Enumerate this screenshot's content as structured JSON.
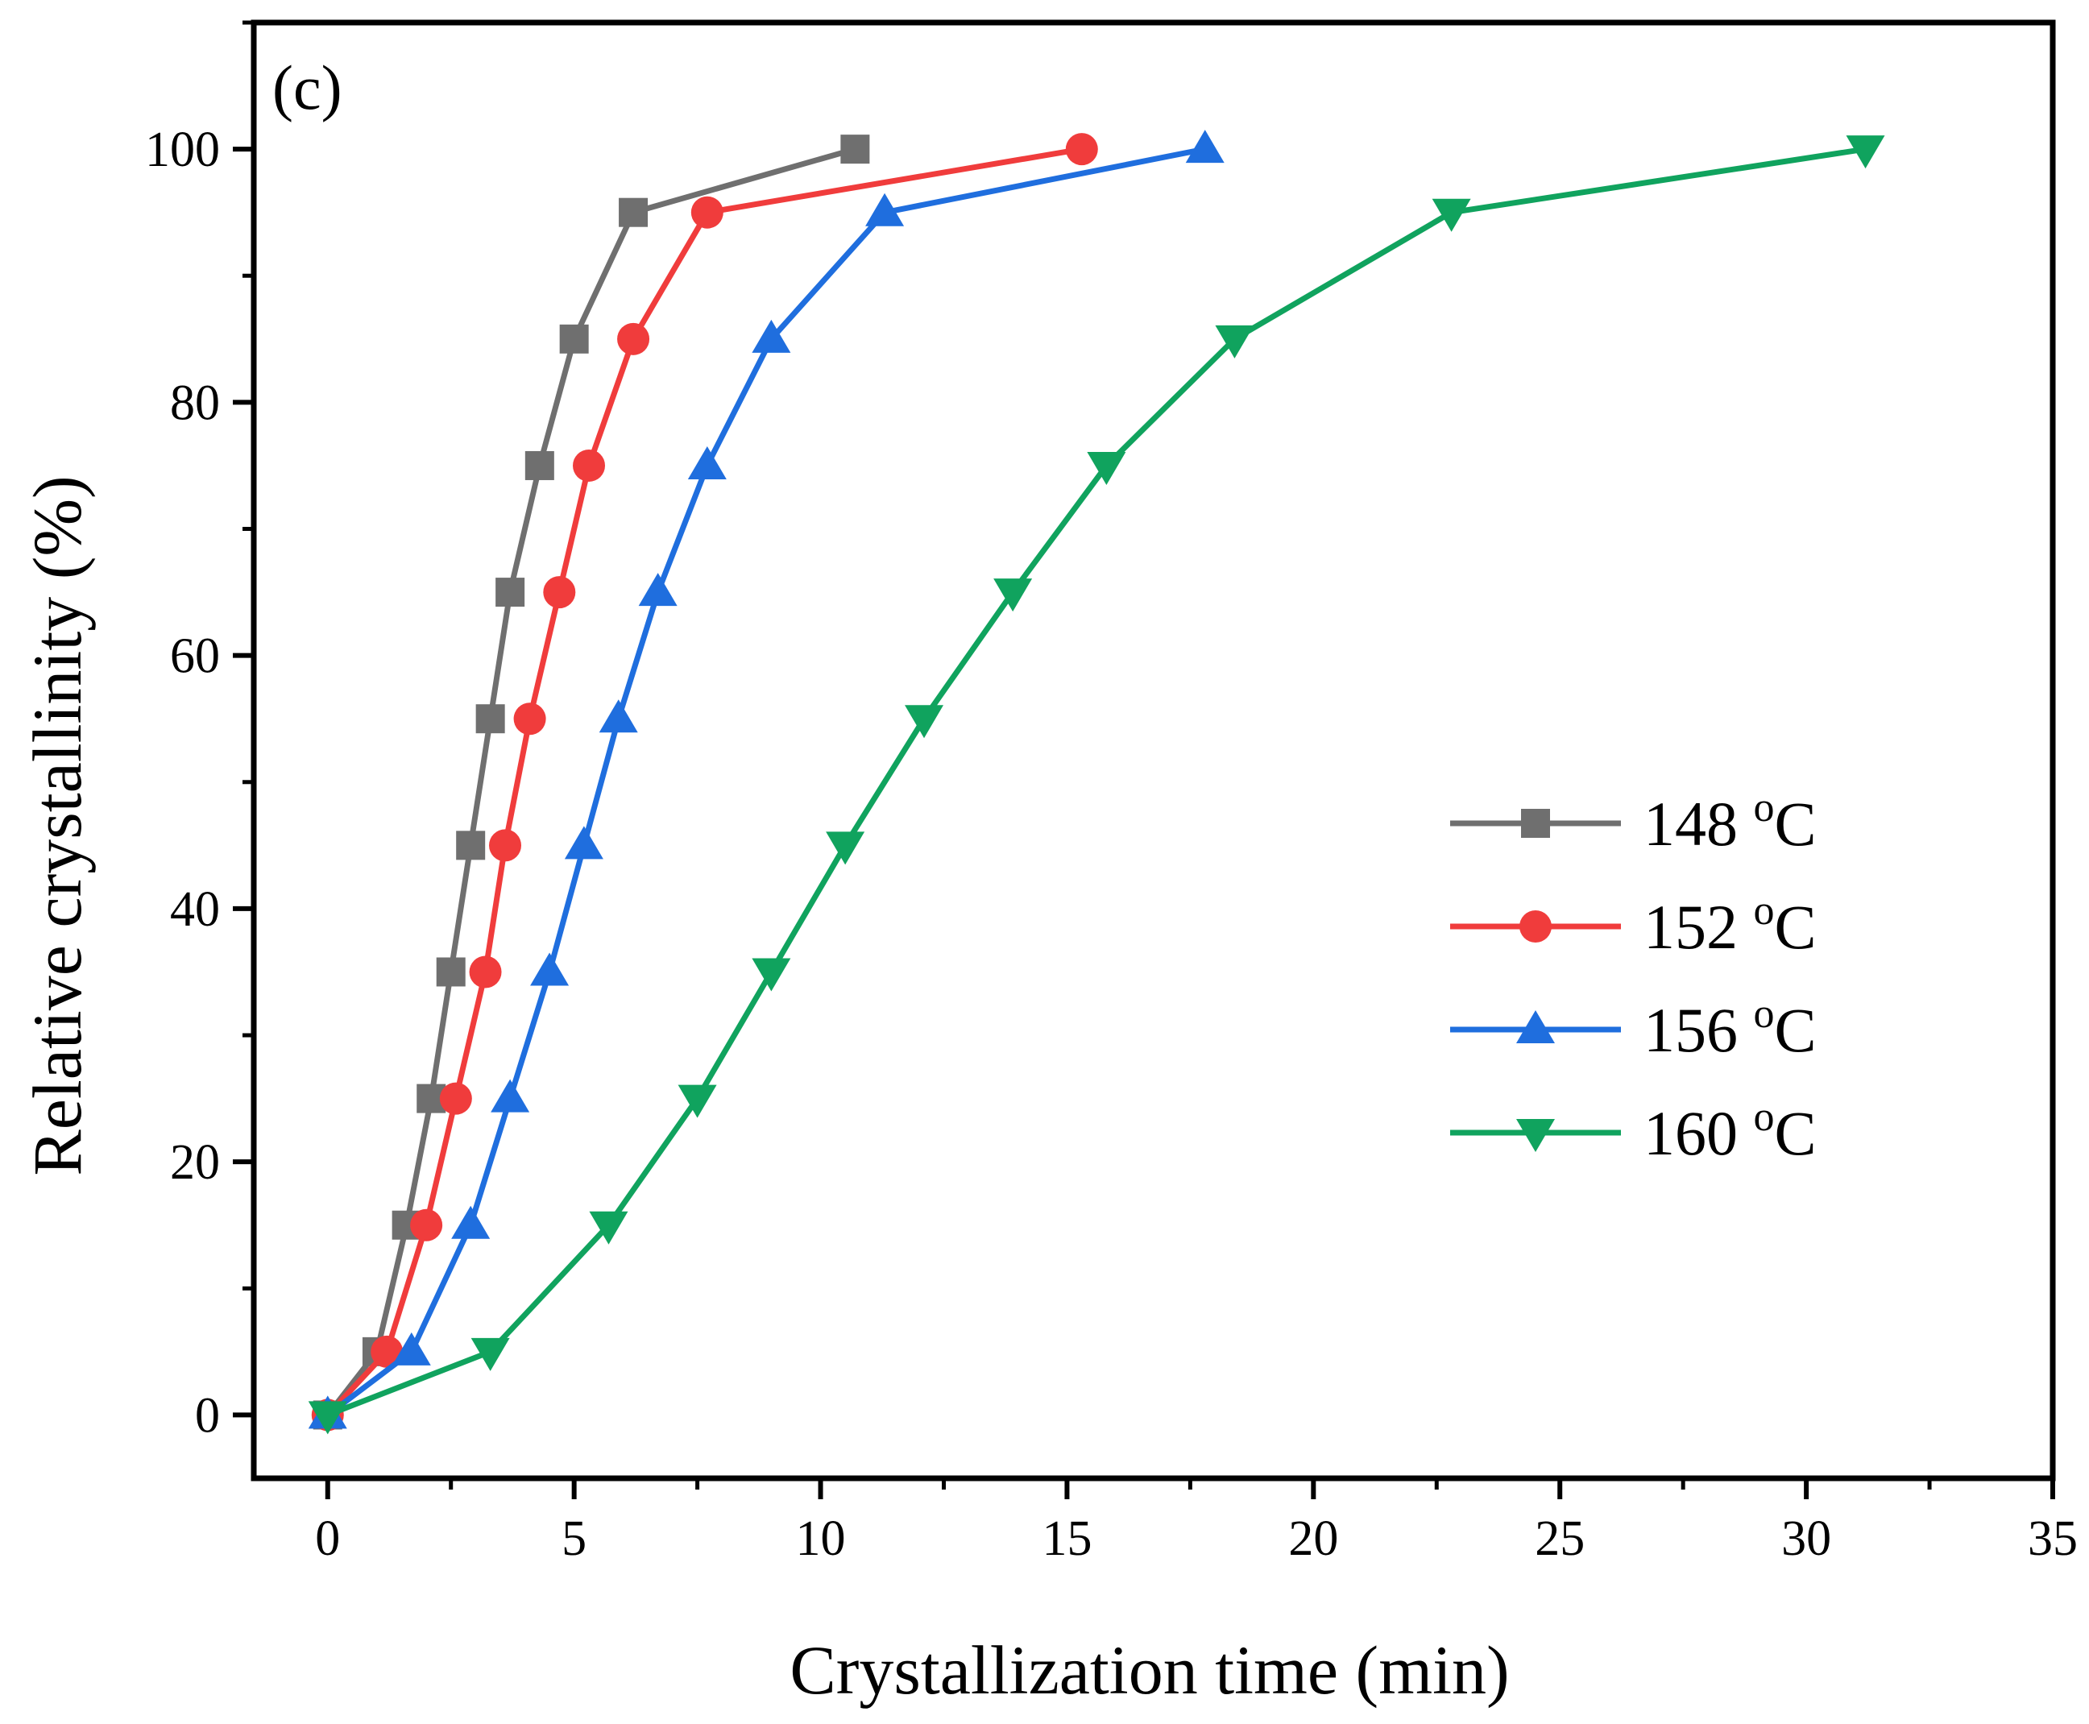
{
  "chart_data": {
    "type": "line",
    "panel_label": "(c)",
    "xlabel": "Crystallization time (min)",
    "ylabel": "Relative crystallinity (%)",
    "xlim": [
      -1.5,
      35
    ],
    "ylim": [
      -5,
      110
    ],
    "xticks": [
      0,
      5,
      10,
      15,
      20,
      25,
      30,
      35
    ],
    "yticks": [
      0,
      20,
      40,
      60,
      80,
      100
    ],
    "grid": false,
    "legend_position": "right, lower-middle",
    "series": [
      {
        "name": "148 °C",
        "name_parts": {
          "number": "148 ",
          "superscript": "o",
          "unit": "C"
        },
        "color": "#6f6f6f",
        "marker": "square",
        "x": [
          0,
          1.0,
          1.6,
          2.1,
          2.5,
          2.9,
          3.3,
          3.7,
          4.3,
          5.0,
          6.2,
          10.7
        ],
        "y": [
          0,
          5,
          15,
          25,
          35,
          45,
          55,
          65,
          75,
          85,
          95,
          100
        ]
      },
      {
        "name": "152 °C",
        "name_parts": {
          "number": "152 ",
          "superscript": "o",
          "unit": "C"
        },
        "color": "#f03c3c",
        "marker": "circle",
        "x": [
          0,
          1.2,
          2.0,
          2.6,
          3.2,
          3.6,
          4.1,
          4.7,
          5.3,
          6.2,
          7.7,
          15.3
        ],
        "y": [
          0,
          5,
          15,
          25,
          35,
          45,
          55,
          65,
          75,
          85,
          95,
          100
        ]
      },
      {
        "name": "156 °C",
        "name_parts": {
          "number": "156 ",
          "superscript": "o",
          "unit": "C"
        },
        "color": "#1f6ede",
        "marker": "triangle-up",
        "x": [
          0,
          1.7,
          2.9,
          3.7,
          4.5,
          5.2,
          5.9,
          6.7,
          7.7,
          9.0,
          11.3,
          17.8
        ],
        "y": [
          0,
          5,
          15,
          25,
          35,
          45,
          55,
          65,
          75,
          85,
          95,
          100
        ]
      },
      {
        "name": "160 °C",
        "name_parts": {
          "number": "160 ",
          "superscript": "o",
          "unit": "C"
        },
        "color": "#10a35e",
        "marker": "triangle-down",
        "x": [
          0,
          3.3,
          5.7,
          7.5,
          9.0,
          10.5,
          12.1,
          13.9,
          15.8,
          18.4,
          22.8,
          31.2
        ],
        "y": [
          0,
          5,
          15,
          25,
          35,
          45,
          55,
          65,
          75,
          85,
          95,
          100
        ]
      }
    ]
  }
}
